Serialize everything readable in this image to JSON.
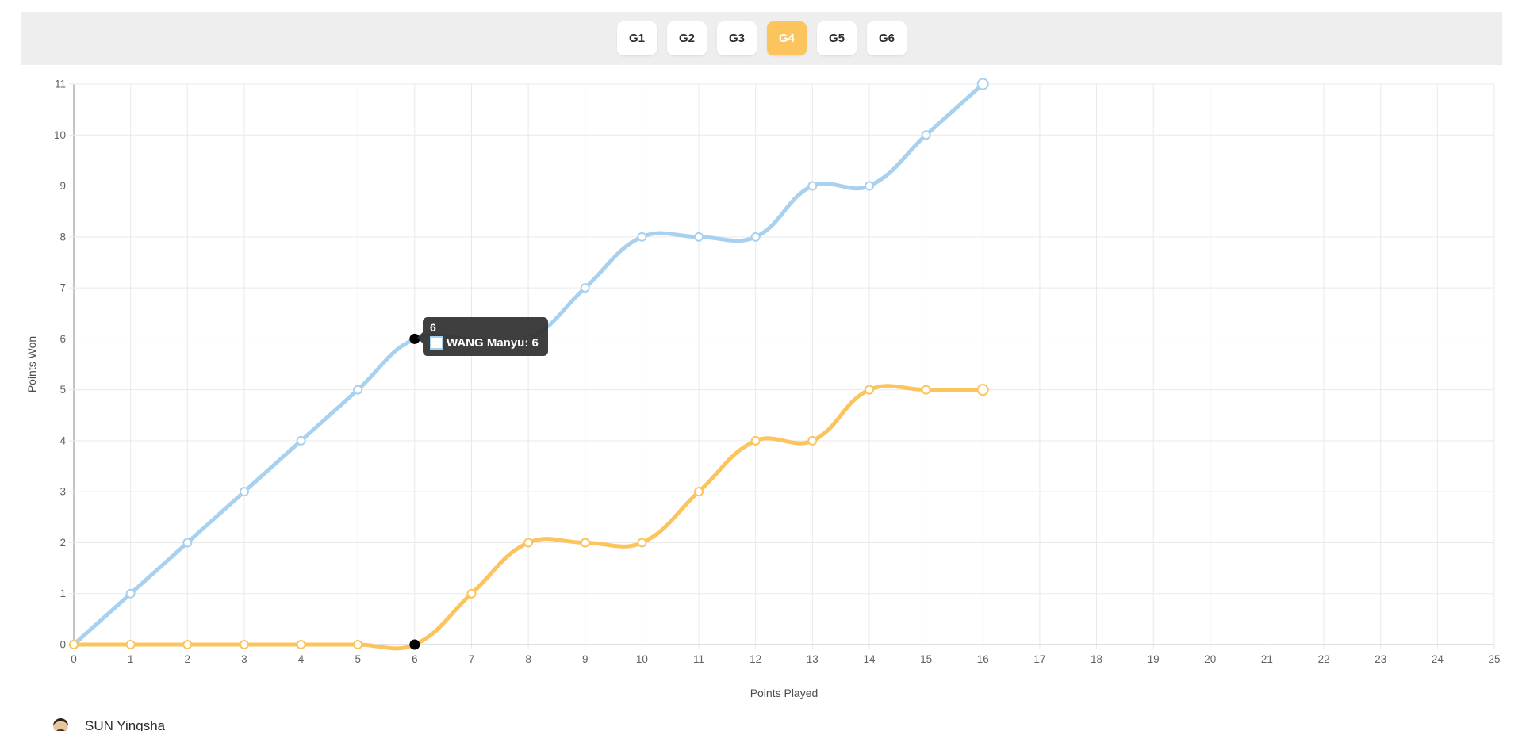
{
  "header": {
    "buttons": [
      {
        "label": "G1",
        "active": false
      },
      {
        "label": "G2",
        "active": false
      },
      {
        "label": "G3",
        "active": false
      },
      {
        "label": "G4",
        "active": true
      },
      {
        "label": "G5",
        "active": false
      },
      {
        "label": "G6",
        "active": false
      }
    ]
  },
  "chart_data": {
    "type": "line",
    "title": "",
    "xlabel": "Points Played",
    "ylabel": "Points Won",
    "x": [
      0,
      1,
      2,
      3,
      4,
      5,
      6,
      7,
      8,
      9,
      10,
      11,
      12,
      13,
      14,
      15,
      16
    ],
    "xlim": [
      0,
      25
    ],
    "ylim": [
      0,
      11
    ],
    "x_ticks": [
      0,
      1,
      2,
      3,
      4,
      5,
      6,
      7,
      8,
      9,
      10,
      11,
      12,
      13,
      14,
      15,
      16,
      17,
      18,
      19,
      20,
      21,
      22,
      23,
      24,
      25
    ],
    "y_ticks": [
      0,
      1,
      2,
      3,
      4,
      5,
      6,
      7,
      8,
      9,
      10,
      11
    ],
    "grid": true,
    "legend_position": "bottom",
    "series": [
      {
        "name": "WANG Manyu",
        "color": "#a8d1f0",
        "values": [
          0,
          1,
          2,
          3,
          4,
          5,
          6,
          6,
          6,
          7,
          8,
          8,
          8,
          9,
          9,
          10,
          11
        ]
      },
      {
        "name": "SUN Yingsha",
        "color": "#fcc45c",
        "values": [
          0,
          0,
          0,
          0,
          0,
          0,
          0,
          1,
          2,
          2,
          2,
          3,
          4,
          4,
          5,
          5,
          5
        ]
      }
    ],
    "hover": {
      "x": 6,
      "points": [
        {
          "series": "WANG Manyu",
          "y": 6
        },
        {
          "series": "SUN Yingsha",
          "y": 0
        }
      ]
    }
  },
  "tooltip": {
    "title": "6",
    "entries": [
      {
        "label": "WANG Manyu",
        "value": "6",
        "color": "#a8d1f0"
      }
    ]
  },
  "legend": {
    "items": [
      {
        "name": "SUN Yingsha",
        "color": "#fcc45c"
      }
    ]
  },
  "colors": {
    "accent": "#fcc45c",
    "toolbar_bg": "#eeeeee",
    "grid": "#e9e9e9",
    "axis_y": "#8a8a8a",
    "axis_x": "#c2c2c2",
    "tick_text": "#616161",
    "hover_point": "#000000",
    "tooltip_bg": "rgba(47,47,47,0.92)"
  }
}
